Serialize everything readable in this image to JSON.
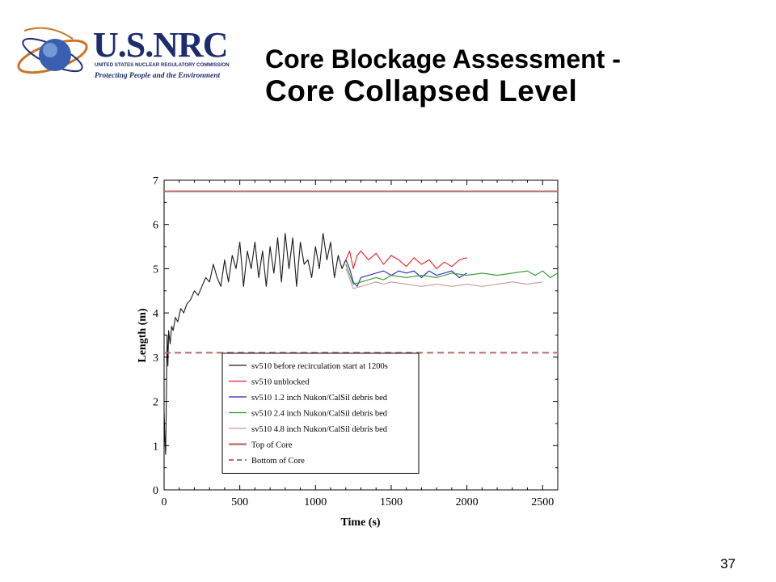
{
  "slide": {
    "title_line1": "Core Blockage Assessment -",
    "title_line2": "Core Collapsed Level",
    "page_number": "37"
  },
  "logo": {
    "wordmark": "U.S.NRC",
    "agency": "UNITED STATES NUCLEAR REGULATORY COMMISSION",
    "tagline": "Protecting People and the Environment"
  },
  "colors": {
    "nrc_navy": "#1c2d6e",
    "orbit_orange": "#c8752a",
    "black_series": "#1a1a1a",
    "red_series": "#e8202a",
    "blue_series": "#2222cc",
    "green_series": "#2a9a2a",
    "pink_series": "#c89a9a",
    "core_line": "#b86a6a"
  },
  "chart_data": {
    "type": "line",
    "xlabel": "Time (s)",
    "ylabel": "Length (m)",
    "xlim": [
      0,
      2600
    ],
    "ylim": [
      0,
      7
    ],
    "xticks": [
      0,
      500,
      1000,
      1500,
      2000,
      2500
    ],
    "yticks": [
      0,
      1,
      2,
      3,
      4,
      5,
      6,
      7
    ],
    "grid": false,
    "legend_position": "lower-left",
    "series": [
      {
        "name": "sv510 before recirculation start at 1200s",
        "color": "#1a1a1a",
        "style": "solid",
        "x": [
          0,
          5,
          10,
          15,
          20,
          25,
          30,
          40,
          50,
          60,
          75,
          90,
          110,
          130,
          150,
          175,
          200,
          225,
          250,
          275,
          300,
          325,
          350,
          375,
          400,
          425,
          450,
          475,
          500,
          525,
          550,
          575,
          600,
          625,
          650,
          675,
          700,
          725,
          750,
          775,
          800,
          825,
          850,
          875,
          900,
          925,
          950,
          975,
          1000,
          1025,
          1050,
          1075,
          1100,
          1125,
          1150,
          1175,
          1200
        ],
        "y": [
          1.8,
          1.2,
          0.8,
          2.0,
          3.5,
          2.8,
          3.6,
          3.3,
          3.7,
          3.6,
          3.9,
          3.8,
          4.1,
          4.0,
          4.2,
          4.3,
          4.5,
          4.4,
          4.6,
          4.8,
          4.7,
          5.1,
          4.8,
          4.6,
          5.2,
          4.7,
          5.3,
          5.0,
          5.6,
          4.6,
          5.4,
          5.0,
          5.6,
          4.8,
          5.4,
          4.6,
          5.5,
          4.9,
          5.7,
          4.7,
          5.8,
          5.0,
          5.7,
          4.6,
          5.6,
          5.1,
          5.2,
          4.8,
          5.5,
          5.0,
          5.8,
          5.2,
          5.6,
          4.8,
          5.3,
          5.0,
          5.2
        ]
      },
      {
        "name": "sv510 unblocked",
        "color": "#e8202a",
        "style": "solid",
        "x": [
          1200,
          1225,
          1250,
          1275,
          1300,
          1350,
          1400,
          1450,
          1500,
          1550,
          1600,
          1650,
          1700,
          1750,
          1800,
          1850,
          1900,
          1950,
          2000
        ],
        "y": [
          5.2,
          5.4,
          5.0,
          5.3,
          5.4,
          5.2,
          5.35,
          5.1,
          5.3,
          5.2,
          5.05,
          5.25,
          5.1,
          5.2,
          5.0,
          5.15,
          5.05,
          5.2,
          5.25
        ]
      },
      {
        "name": "sv510 1.2 inch Nukon/CalSil debris bed",
        "color": "#2222cc",
        "style": "solid",
        "x": [
          1200,
          1225,
          1250,
          1275,
          1300,
          1350,
          1400,
          1450,
          1500,
          1550,
          1600,
          1650,
          1700,
          1750,
          1800,
          1850,
          1900,
          1950,
          2000
        ],
        "y": [
          5.2,
          5.0,
          4.7,
          4.6,
          4.8,
          4.85,
          4.9,
          4.95,
          4.85,
          4.95,
          4.9,
          4.95,
          4.8,
          4.95,
          4.85,
          4.9,
          4.95,
          4.8,
          4.9
        ]
      },
      {
        "name": "sv510 2.4 inch Nukon/CalSil debris bed",
        "color": "#2a9a2a",
        "style": "solid",
        "x": [
          1200,
          1250,
          1300,
          1350,
          1400,
          1450,
          1500,
          1600,
          1700,
          1800,
          1900,
          2000,
          2100,
          2200,
          2300,
          2400,
          2450,
          2500,
          2550,
          2600
        ],
        "y": [
          5.1,
          4.65,
          4.7,
          4.75,
          4.8,
          4.75,
          4.85,
          4.8,
          4.85,
          4.8,
          4.9,
          4.85,
          4.9,
          4.85,
          4.9,
          4.95,
          4.85,
          4.95,
          4.8,
          4.9
        ]
      },
      {
        "name": "sv510 4.8 inch Nukon/CalSil debris bed",
        "color": "#c89a9a",
        "style": "solid",
        "x": [
          1200,
          1250,
          1300,
          1350,
          1400,
          1450,
          1500,
          1600,
          1700,
          1800,
          1900,
          2000,
          2100,
          2200,
          2300,
          2400,
          2500
        ],
        "y": [
          5.0,
          4.55,
          4.6,
          4.65,
          4.7,
          4.65,
          4.7,
          4.65,
          4.6,
          4.65,
          4.6,
          4.65,
          4.6,
          4.65,
          4.7,
          4.65,
          4.7
        ]
      },
      {
        "name": "Top of Core",
        "color": "#b86a6a",
        "style": "solid-thick",
        "x": [
          0,
          2600
        ],
        "y": [
          6.75,
          6.75
        ]
      },
      {
        "name": "Bottom of Core",
        "color": "#b86a6a",
        "style": "dashed",
        "x": [
          0,
          2600
        ],
        "y": [
          3.1,
          3.1
        ]
      }
    ]
  }
}
